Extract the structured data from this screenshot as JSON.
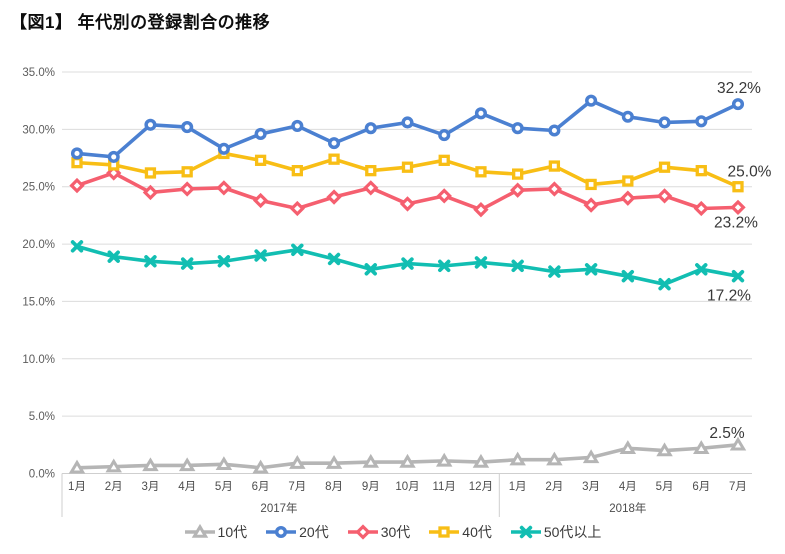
{
  "header": {
    "title": "【図1】 年代別の登録割合の推移"
  },
  "chart_data": {
    "type": "line",
    "title": "【図1】 年代別の登録割合の推移",
    "x_groups": [
      {
        "year_label": "2017年",
        "months": [
          "1月",
          "2月",
          "3月",
          "4月",
          "5月",
          "6月",
          "7月",
          "8月",
          "9月",
          "10月",
          "11月",
          "12月"
        ]
      },
      {
        "year_label": "2018年",
        "months": [
          "1月",
          "2月",
          "3月",
          "4月",
          "5月",
          "6月",
          "7月"
        ]
      }
    ],
    "ylim": [
      0,
      35
    ],
    "yticks": [
      0,
      5,
      10,
      15,
      20,
      25,
      30,
      35
    ],
    "ytick_labels": [
      "0.0%",
      "5.0%",
      "10.0%",
      "15.0%",
      "20.0%",
      "25.0%",
      "30.0%",
      "35.0%"
    ],
    "grid": true,
    "legend_position": "bottom",
    "colors": {
      "grid": "#dcdcdc",
      "axis": "#cfcfcf",
      "tick_text": "#5c5c5c",
      "annotation_text": "#383838"
    },
    "series": [
      {
        "key": "teens",
        "name": "10代",
        "color": "#b5b5b5",
        "marker": "triangle",
        "end_label": "2.5%",
        "values": [
          0.5,
          0.6,
          0.7,
          0.7,
          0.8,
          0.5,
          0.9,
          0.9,
          1.0,
          1.0,
          1.1,
          1.0,
          1.2,
          1.2,
          1.4,
          2.2,
          2.0,
          2.2,
          2.5
        ]
      },
      {
        "key": "twenties",
        "name": "20代",
        "color": "#4b80d1",
        "marker": "circle",
        "end_label": "32.2%",
        "values": [
          27.9,
          27.6,
          30.4,
          30.2,
          28.3,
          29.6,
          30.3,
          28.8,
          30.1,
          30.6,
          29.5,
          31.4,
          30.1,
          29.9,
          32.5,
          31.1,
          30.6,
          30.7,
          32.2
        ]
      },
      {
        "key": "thirties",
        "name": "30代",
        "color": "#f55f6f",
        "marker": "diamond",
        "end_label": "23.2%",
        "values": [
          25.1,
          26.2,
          24.5,
          24.8,
          24.9,
          23.8,
          23.1,
          24.1,
          24.9,
          23.5,
          24.2,
          23.0,
          24.7,
          24.8,
          23.4,
          24.0,
          24.2,
          23.1,
          23.2
        ]
      },
      {
        "key": "forties",
        "name": "40代",
        "color": "#f8be15",
        "marker": "square",
        "end_label": "25.0%",
        "values": [
          27.1,
          26.9,
          26.2,
          26.3,
          27.9,
          27.3,
          26.4,
          27.4,
          26.4,
          26.7,
          27.3,
          26.3,
          26.1,
          26.8,
          25.2,
          25.5,
          26.7,
          26.4,
          25.0
        ]
      },
      {
        "key": "fifties_plus",
        "name": "50代以上",
        "color": "#12beb2",
        "marker": "x",
        "end_label": "17.2%",
        "values": [
          19.8,
          18.9,
          18.5,
          18.3,
          18.5,
          19.0,
          19.5,
          18.7,
          17.8,
          18.3,
          18.1,
          18.4,
          18.1,
          17.6,
          17.8,
          17.2,
          16.5,
          17.8,
          17.2
        ]
      }
    ]
  }
}
